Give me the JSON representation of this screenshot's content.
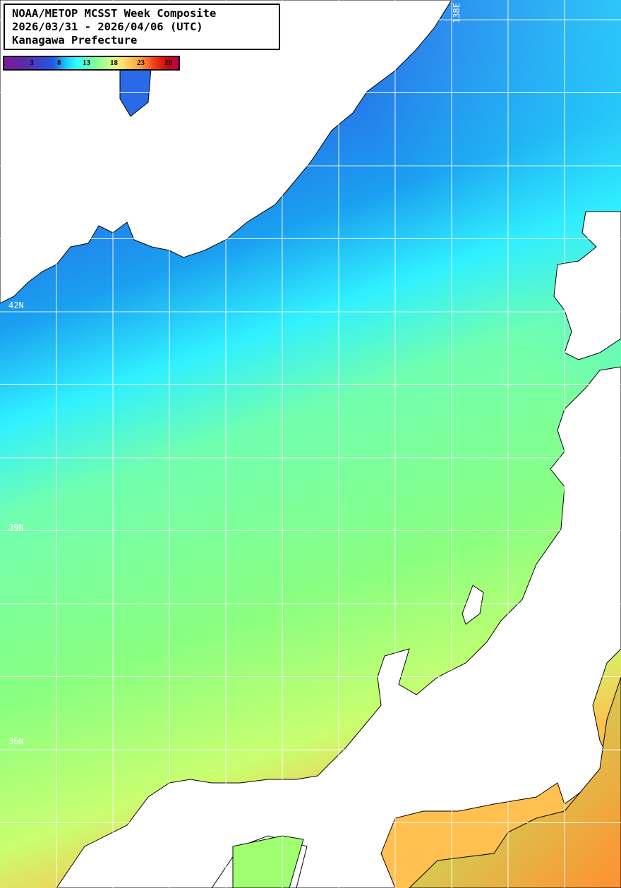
{
  "title": {
    "line1": "NOAA/METOP MCSST Week Composite",
    "line2": "2026/03/31 - 2026/04/06 (UTC)",
    "line3": "Kanagawa Prefecture"
  },
  "colorbar": {
    "ticks": [
      "3",
      "8",
      "13",
      "18",
      "23",
      "28"
    ],
    "colors": [
      "#7a1a96",
      "#1e5ae6",
      "#30ffff",
      "#7cff9a",
      "#ffe070",
      "#ffa040",
      "#d00010",
      "#c00060"
    ]
  },
  "grid_labels": {
    "lon_138": "138E",
    "lat_42": "42N",
    "lat_39": "39N",
    "lat_36": "36N"
  },
  "land_color": "#ffffff"
}
